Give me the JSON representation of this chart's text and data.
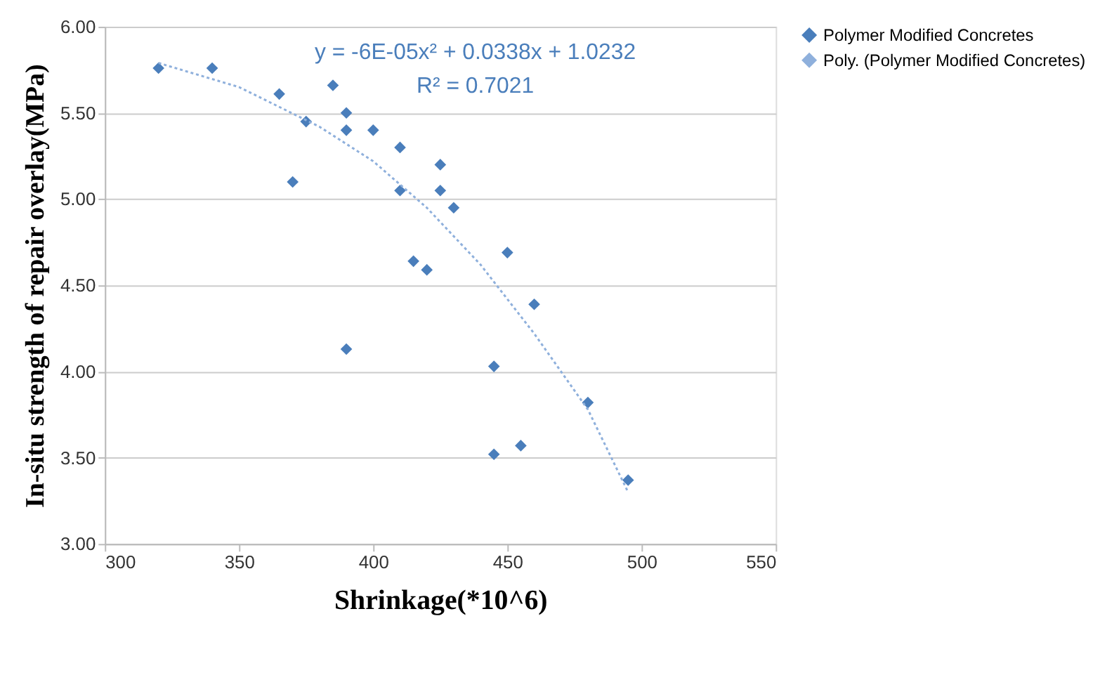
{
  "chart_data": {
    "type": "scatter",
    "xlabel": "Shrinkage(*10^6)",
    "ylabel": "In-situ strength of repair overlay(MPa)",
    "xlim": [
      300,
      550
    ],
    "xticks": [
      300,
      350,
      400,
      450,
      500,
      550
    ],
    "ylim": [
      3,
      6
    ],
    "yticks": [
      {
        "value": 3,
        "label": "3.00"
      },
      {
        "value": 3.5,
        "label": "3.50"
      },
      {
        "value": 4,
        "label": "4.00"
      },
      {
        "value": 4.5,
        "label": "4.50"
      },
      {
        "value": 5,
        "label": "5.00"
      },
      {
        "value": 5.5,
        "label": "5.50"
      },
      {
        "value": 6,
        "label": "6.00"
      }
    ],
    "grid": "y",
    "legend": "right",
    "annotations": [
      "y = -6E-05x² + 0.0338x + 1.0232",
      "R² = 0.7021"
    ],
    "series": [
      {
        "name": "Polymer Modified Concretes",
        "type": "scatter",
        "marker": "diamond",
        "color": "#4a7ebb",
        "x": [
          320,
          340,
          365,
          385,
          375,
          390,
          390,
          400,
          370,
          410,
          410,
          425,
          425,
          430,
          415,
          420,
          450,
          460,
          390,
          445,
          480,
          445,
          455,
          495
        ],
        "values": [
          5.76,
          5.76,
          5.61,
          5.66,
          5.45,
          5.5,
          5.4,
          5.4,
          5.1,
          5.3,
          5.05,
          5.2,
          5.05,
          4.95,
          4.64,
          4.59,
          4.69,
          4.39,
          4.13,
          4.03,
          3.82,
          3.52,
          3.57,
          3.37
        ]
      },
      {
        "name": "Poly. (Polymer Modified Concretes)",
        "type": "line",
        "line_style": "dotted",
        "color": "#8fb0dc",
        "x": [
          320,
          350,
          380,
          400,
          420,
          440,
          460,
          480,
          495
        ],
        "values": [
          5.79,
          5.65,
          5.42,
          5.22,
          4.95,
          4.62,
          4.22,
          3.78,
          3.3
        ]
      }
    ]
  }
}
